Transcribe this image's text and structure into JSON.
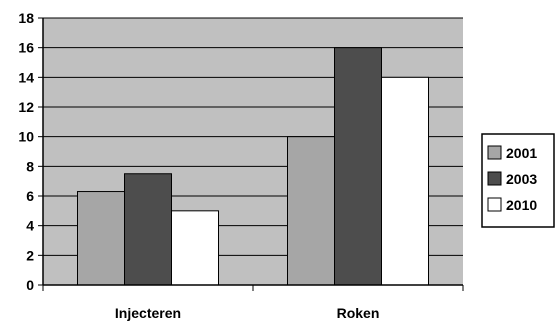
{
  "chart_data": {
    "type": "bar",
    "title": "",
    "xlabel": "",
    "ylabel": "",
    "categories": [
      "Injecteren",
      "Roken"
    ],
    "series": [
      {
        "name": "2001",
        "values": [
          6.3,
          10
        ],
        "color": "#a6a6a6"
      },
      {
        "name": "2003",
        "values": [
          7.5,
          16
        ],
        "color": "#4d4d4d"
      },
      {
        "name": "2010",
        "values": [
          5,
          14
        ],
        "color": "#ffffff"
      }
    ],
    "ylim": [
      0,
      18
    ],
    "yticks": [
      0,
      2,
      4,
      6,
      8,
      10,
      12,
      14,
      16,
      18
    ],
    "grid": true,
    "plot_background": "#c0c0c0",
    "legend_position": "right"
  }
}
